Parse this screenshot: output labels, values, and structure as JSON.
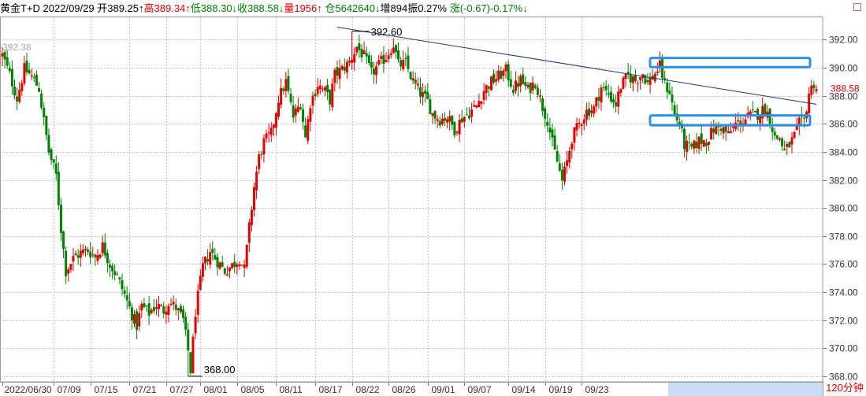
{
  "header": {
    "name": "黄金T+D",
    "date": "2022/09/29",
    "open": "开389.25↑",
    "high": "高389.34↑",
    "low": "低388.30↓",
    "close": "收388.58↓",
    "volume": "量1956↑",
    "position": "仓5642640↓",
    "increase": "增894",
    "amplitude": "振0.27%",
    "change": "涨(-0.67)-0.17%↓"
  },
  "period_label": "120分钟",
  "corner_icon": "square-icon",
  "colors": {
    "up": "#e00000",
    "down": "#008000",
    "grid": "#bfbfbf",
    "trendline": "#1a3b6e",
    "box": "#2e8fe6",
    "highlight": "#c9dcf2"
  },
  "chart_data": {
    "type": "candlestick",
    "ylim": [
      367.6,
      393.6
    ],
    "y_ticks": [
      368.0,
      370.0,
      372.0,
      374.0,
      376.0,
      378.0,
      380.0,
      382.0,
      384.0,
      386.0,
      388.0,
      390.0,
      392.0
    ],
    "y_tick_labels": [
      "368.00",
      "370.00",
      "372.00",
      "374.00",
      "376.00",
      "378.00",
      "380.00",
      "382.00",
      "384.00",
      "386.00",
      "388.00",
      "390.00",
      "392.00"
    ],
    "x_labels": [
      "2022/06/30",
      "07/09",
      "07/15",
      "07/21",
      "07/27",
      "08/01",
      "08/05",
      "08/11",
      "08/17",
      "08/22",
      "08/26",
      "09/01",
      "09/07",
      "09/14",
      "09/19",
      "09/23"
    ],
    "last_price": "388.58",
    "top_left_label": "392.38",
    "annotations": [
      {
        "label": "392.60",
        "value": 392.6
      },
      {
        "label": "368.00",
        "value": 368.0
      }
    ],
    "trendline": {
      "from": 392.9,
      "to": 387.4
    },
    "resistance_zone": [
      390.05,
      390.7
    ],
    "support_zone": [
      385.9,
      386.6
    ],
    "close_path": [
      [
        0,
        390.9
      ],
      [
        3,
        389.5
      ],
      [
        6,
        387.8
      ],
      [
        9,
        389.9
      ],
      [
        12,
        389.4
      ],
      [
        15,
        388.5
      ],
      [
        17,
        386.2
      ],
      [
        19,
        384.0
      ],
      [
        22,
        382.3
      ],
      [
        24,
        378.5
      ],
      [
        26,
        375.5
      ],
      [
        29,
        376.4
      ],
      [
        32,
        376.8
      ],
      [
        35,
        377.0
      ],
      [
        38,
        376.5
      ],
      [
        41,
        377.3
      ],
      [
        44,
        376.0
      ],
      [
        47,
        375.1
      ],
      [
        50,
        373.8
      ],
      [
        53,
        372.4
      ],
      [
        55,
        371.6
      ],
      [
        57,
        373.0
      ],
      [
        60,
        372.5
      ],
      [
        63,
        373.1
      ],
      [
        66,
        372.7
      ],
      [
        68,
        373.3
      ],
      [
        71,
        372.9
      ],
      [
        74,
        372.0
      ],
      [
        76,
        369.8
      ],
      [
        77,
        368.4
      ],
      [
        79,
        372.6
      ],
      [
        82,
        375.8
      ],
      [
        85,
        376.9
      ],
      [
        88,
        376.2
      ],
      [
        91,
        375.5
      ],
      [
        94,
        375.9
      ],
      [
        97,
        376.4
      ],
      [
        99,
        375.6
      ],
      [
        101,
        378.6
      ],
      [
        103,
        381.5
      ],
      [
        105,
        383.6
      ],
      [
        107,
        384.7
      ],
      [
        110,
        385.3
      ],
      [
        113,
        387.8
      ],
      [
        116,
        389.0
      ],
      [
        119,
        386.5
      ],
      [
        122,
        387.5
      ],
      [
        124,
        385.0
      ],
      [
        126,
        387.5
      ],
      [
        129,
        388.8
      ],
      [
        132,
        388.3
      ],
      [
        134,
        387.7
      ],
      [
        136,
        389.5
      ],
      [
        139,
        389.9
      ],
      [
        142,
        390.4
      ],
      [
        145,
        391.5
      ],
      [
        148,
        390.8
      ],
      [
        151,
        389.6
      ],
      [
        154,
        390.2
      ],
      [
        157,
        390.8
      ],
      [
        160,
        391.7
      ],
      [
        162,
        390.2
      ],
      [
        165,
        390.3
      ],
      [
        168,
        389.0
      ],
      [
        171,
        388.2
      ],
      [
        174,
        387.6
      ],
      [
        176,
        386.7
      ],
      [
        179,
        386.3
      ],
      [
        182,
        386.5
      ],
      [
        185,
        385.6
      ],
      [
        188,
        386.4
      ],
      [
        191,
        386.8
      ],
      [
        194,
        387.3
      ],
      [
        197,
        388.4
      ],
      [
        200,
        389.0
      ],
      [
        203,
        389.4
      ],
      [
        206,
        389.8
      ],
      [
        209,
        388.5
      ],
      [
        212,
        389.1
      ],
      [
        215,
        388.4
      ],
      [
        218,
        389.0
      ],
      [
        221,
        387.2
      ],
      [
        223,
        386.3
      ],
      [
        225,
        384.6
      ],
      [
        227,
        383.3
      ],
      [
        229,
        381.9
      ],
      [
        231,
        383.3
      ],
      [
        233,
        385.0
      ],
      [
        236,
        386.0
      ],
      [
        239,
        386.9
      ],
      [
        242,
        387.1
      ],
      [
        245,
        388.6
      ],
      [
        248,
        388.1
      ],
      [
        251,
        387.4
      ],
      [
        253,
        388.7
      ],
      [
        256,
        389.4
      ],
      [
        259,
        389.1
      ],
      [
        262,
        389.6
      ],
      [
        264,
        388.9
      ],
      [
        267,
        389.6
      ],
      [
        269,
        390.1
      ],
      [
        271,
        388.8
      ],
      [
        273,
        388.3
      ],
      [
        275,
        386.6
      ],
      [
        277,
        386.0
      ],
      [
        279,
        384.5
      ],
      [
        282,
        384.2
      ],
      [
        285,
        384.8
      ],
      [
        288,
        384.8
      ],
      [
        291,
        385.6
      ],
      [
        294,
        385.8
      ],
      [
        297,
        385.2
      ],
      [
        300,
        386.0
      ],
      [
        303,
        386.2
      ],
      [
        306,
        386.6
      ],
      [
        309,
        386.7
      ],
      [
        312,
        387.1
      ],
      [
        314,
        386.4
      ],
      [
        316,
        385.0
      ],
      [
        318,
        385.0
      ],
      [
        320,
        384.0
      ],
      [
        322,
        384.5
      ],
      [
        324,
        385.1
      ],
      [
        326,
        386.0
      ],
      [
        328,
        386.2
      ],
      [
        330,
        388.2
      ],
      [
        332,
        388.9
      ],
      [
        333,
        388.58
      ]
    ]
  }
}
